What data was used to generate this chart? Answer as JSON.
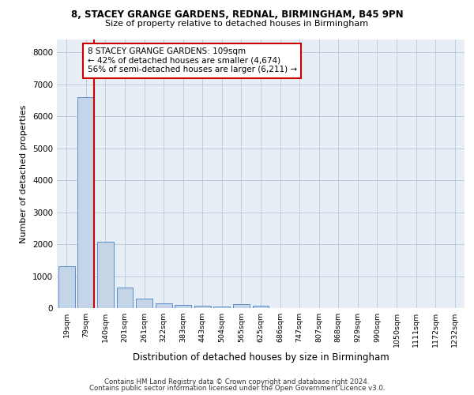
{
  "title_line1": "8, STACEY GRANGE GARDENS, REDNAL, BIRMINGHAM, B45 9PN",
  "title_line2": "Size of property relative to detached houses in Birmingham",
  "xlabel": "Distribution of detached houses by size in Birmingham",
  "ylabel": "Number of detached properties",
  "categories": [
    "19sqm",
    "79sqm",
    "140sqm",
    "201sqm",
    "261sqm",
    "322sqm",
    "383sqm",
    "443sqm",
    "504sqm",
    "565sqm",
    "625sqm",
    "686sqm",
    "747sqm",
    "807sqm",
    "868sqm",
    "929sqm",
    "990sqm",
    "1050sqm",
    "1111sqm",
    "1172sqm",
    "1232sqm"
  ],
  "values": [
    1300,
    6600,
    2080,
    650,
    290,
    140,
    105,
    80,
    60,
    115,
    85,
    0,
    0,
    0,
    0,
    0,
    0,
    0,
    0,
    0,
    0
  ],
  "bar_color": "#c5d5e8",
  "bar_edge_color": "#5b8cc8",
  "property_line": "8 STACEY GRANGE GARDENS: 109sqm",
  "annotation_line1": "← 42% of detached houses are smaller (4,674)",
  "annotation_line2": "56% of semi-detached houses are larger (6,211) →",
  "annotation_box_color": "#cc0000",
  "red_line_x": 1.42,
  "ylim": [
    0,
    8400
  ],
  "yticks": [
    0,
    1000,
    2000,
    3000,
    4000,
    5000,
    6000,
    7000,
    8000
  ],
  "footer_line1": "Contains HM Land Registry data © Crown copyright and database right 2024.",
  "footer_line2": "Contains public sector information licensed under the Open Government Licence v3.0.",
  "bg_color": "#ffffff",
  "plot_bg_color": "#e8eef6",
  "grid_color": "#c0ccdc"
}
